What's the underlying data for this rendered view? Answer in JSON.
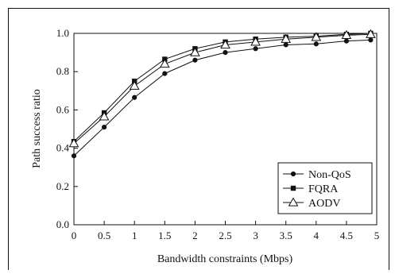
{
  "chart_data": {
    "type": "line",
    "xlabel": "Bandwidth constraints (Mbps)",
    "ylabel": "Path success ratio",
    "xlim": [
      0,
      5
    ],
    "ylim": [
      0,
      1.0
    ],
    "x_ticks": [
      "0",
      "0.5",
      "1",
      "1.5",
      "2",
      "2.5",
      "3",
      "3.5",
      "4",
      "4.5",
      "5"
    ],
    "y_ticks": [
      "0.0",
      "0.2",
      "0.4",
      "0.6",
      "0.8",
      "1.0"
    ],
    "x": [
      0,
      0.5,
      1,
      1.5,
      2,
      2.5,
      3,
      3.5,
      4,
      4.5,
      4.9
    ],
    "grid": false,
    "legend_position": "bottom-right",
    "series": [
      {
        "name": "Non-QoS",
        "marker": "circle",
        "color": "#111111",
        "values": [
          0.36,
          0.51,
          0.665,
          0.79,
          0.86,
          0.9,
          0.92,
          0.94,
          0.945,
          0.96,
          0.965
        ]
      },
      {
        "name": "FQRA",
        "marker": "square",
        "color": "#111111",
        "values": [
          0.435,
          0.585,
          0.75,
          0.865,
          0.92,
          0.955,
          0.97,
          0.98,
          0.985,
          0.995,
          1.0
        ]
      },
      {
        "name": "AODV",
        "marker": "triangle",
        "color": "#111111",
        "values": [
          0.425,
          0.565,
          0.725,
          0.84,
          0.9,
          0.94,
          0.955,
          0.97,
          0.98,
          0.99,
          0.995
        ]
      }
    ]
  }
}
